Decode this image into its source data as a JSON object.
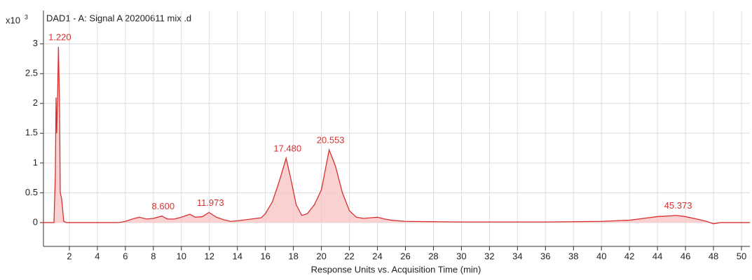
{
  "chart_data": {
    "type": "line",
    "title": "DAD1 - A: Signal A 20200611 mix .d",
    "y_scale": "x10",
    "y_scale_exponent": "3",
    "xlabel": "Response Units vs. Acquisition Time (min)",
    "x": [
      0,
      0.9,
      1.0,
      1.05,
      1.1,
      1.15,
      1.22,
      1.3,
      1.35,
      1.45,
      1.6,
      1.8,
      2.5,
      5.5,
      6.0,
      6.5,
      7.0,
      7.5,
      8.0,
      8.6,
      9.0,
      9.5,
      10.0,
      10.6,
      11.0,
      11.5,
      11.973,
      12.5,
      13.0,
      13.5,
      14.0,
      15.0,
      15.7,
      16.0,
      16.5,
      17.0,
      17.48,
      17.8,
      18.2,
      18.6,
      19.0,
      19.5,
      20.0,
      20.553,
      21.0,
      21.5,
      22.0,
      22.5,
      23.0,
      23.5,
      24.0,
      24.5,
      25.0,
      26,
      30,
      36,
      40,
      42,
      43,
      44,
      45.373,
      46,
      47,
      47.5,
      48,
      48.5,
      50.6
    ],
    "series": [
      {
        "color": "#d83030",
        "values": [
          0,
          0,
          0.8,
          2.1,
          1.5,
          2.0,
          2.95,
          1.95,
          0.5,
          0.4,
          0.02,
          0,
          0,
          0,
          0.02,
          0.06,
          0.09,
          0.06,
          0.07,
          0.11,
          0.06,
          0.06,
          0.09,
          0.14,
          0.09,
          0.1,
          0.17,
          0.09,
          0.05,
          0.02,
          0.03,
          0.06,
          0.08,
          0.15,
          0.35,
          0.7,
          1.08,
          0.75,
          0.3,
          0.12,
          0.15,
          0.3,
          0.55,
          1.22,
          0.95,
          0.5,
          0.2,
          0.09,
          0.07,
          0.08,
          0.09,
          0.06,
          0.04,
          0.02,
          0.01,
          0.01,
          0.02,
          0.04,
          0.07,
          0.1,
          0.12,
          0.1,
          0.05,
          0.02,
          -0.02,
          0,
          0
        ]
      }
    ],
    "fill_color": "#f7c5c5",
    "annotations": [
      {
        "x": 1.22,
        "label": "1.220"
      },
      {
        "x": 8.6,
        "label": "8.600"
      },
      {
        "x": 11.973,
        "label": "11.973"
      },
      {
        "x": 17.48,
        "label": "17.480"
      },
      {
        "x": 20.553,
        "label": "20.553"
      },
      {
        "x": 45.373,
        "label": "45.373"
      }
    ],
    "xlim": [
      0.15,
      50.6
    ],
    "ylim": [
      -0.4,
      3.56
    ],
    "xticks": [
      2,
      4,
      6,
      8,
      10,
      12,
      14,
      16,
      18,
      20,
      22,
      24,
      26,
      28,
      30,
      32,
      34,
      36,
      38,
      40,
      42,
      44,
      46,
      48,
      50
    ],
    "yticks": [
      0,
      0.5,
      1,
      1.5,
      2,
      2.5,
      3
    ],
    "grid": true
  }
}
